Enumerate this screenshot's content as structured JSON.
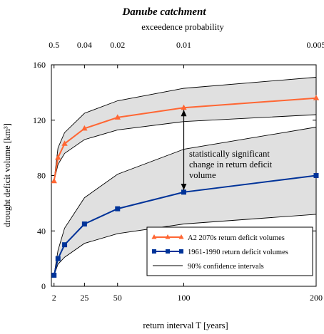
{
  "chart_data": {
    "type": "line",
    "title": "Danube catchment",
    "xlabel": "return interval T [years]",
    "ylabel": "drought deficit volume [km³]",
    "top_axis_label": "exceedence probability",
    "xlim": [
      0,
      200
    ],
    "ylim": [
      0,
      160
    ],
    "x_ticks": [
      2,
      25,
      50,
      100,
      200
    ],
    "y_ticks": [
      0,
      40,
      80,
      120,
      160
    ],
    "top_ticks": [
      {
        "x": 2,
        "label": "0.5"
      },
      {
        "x": 25,
        "label": "0.04"
      },
      {
        "x": 50,
        "label": "0.02"
      },
      {
        "x": 100,
        "label": "0.01"
      },
      {
        "x": 200,
        "label": "0.005"
      }
    ],
    "series": [
      {
        "name": "A2  2070s return deficit volumes",
        "color": "#ff6633",
        "marker": "triangle",
        "x": [
          2,
          5,
          10,
          25,
          50,
          100,
          200
        ],
        "y": [
          76,
          93,
          103,
          114,
          122,
          129,
          136
        ],
        "ci_lower": [
          76,
          88,
          96,
          106,
          113,
          119,
          124
        ],
        "ci_upper": [
          76,
          100,
          111,
          125,
          134,
          143,
          151
        ]
      },
      {
        "name": "1961-1990 return deficit volumes",
        "color": "#003399",
        "marker": "square",
        "x": [
          2,
          5,
          10,
          25,
          50,
          100,
          200
        ],
        "y": [
          8,
          20,
          30,
          45,
          56,
          68,
          80
        ],
        "ci_lower": [
          8,
          16,
          21,
          31,
          38,
          45,
          52
        ],
        "ci_upper": [
          8,
          26,
          42,
          64,
          81,
          99,
          115
        ]
      }
    ],
    "ci_legend": "90% confidence intervals",
    "annotation": {
      "lines": [
        "statistically significant",
        "change in return deficit",
        "volume"
      ],
      "arrow_x": 100,
      "arrow_from": 68,
      "arrow_to": 129
    },
    "legend_position": "bottom-right",
    "colors": {
      "band": "#e0e0e0",
      "ci_line": "#000000"
    }
  }
}
